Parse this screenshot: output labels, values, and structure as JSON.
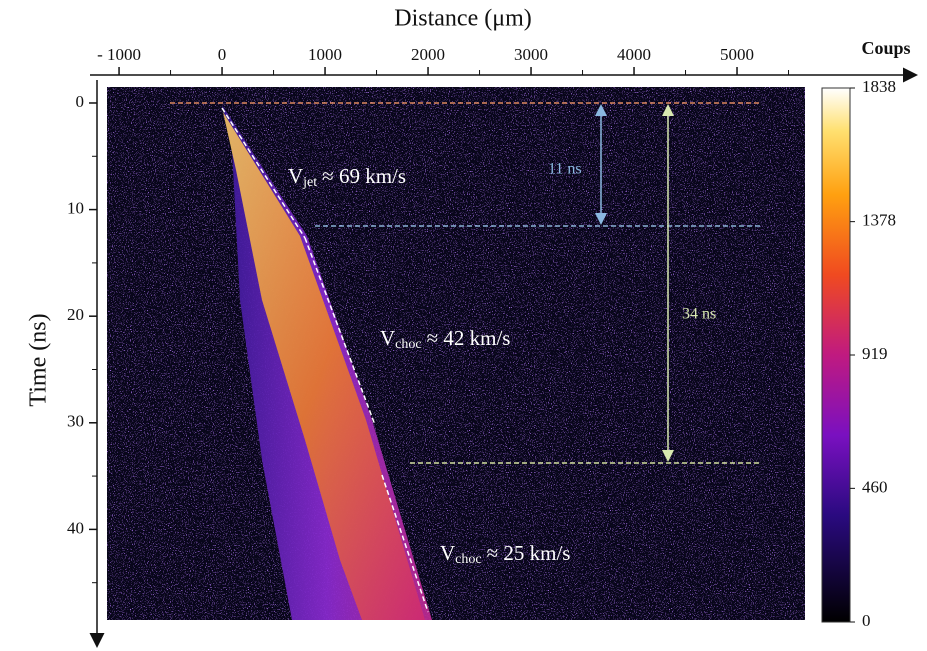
{
  "chart_data": {
    "type": "streak",
    "x_label": "Distance (μm)",
    "y_label": "Time (ns)",
    "xlim": [
      -1117,
      5660
    ],
    "xticks": [
      {
        "value": -1000,
        "label": "- 1000"
      },
      0,
      1000,
      2000,
      3000,
      4000,
      5000
    ],
    "ylim": [
      -1.5,
      48.5
    ],
    "yticks": [
      0,
      10,
      20,
      30,
      40
    ],
    "colorbar": {
      "title": "Coups",
      "clim": [
        0,
        1838
      ],
      "ticks": [
        0,
        460,
        919,
        1378,
        1838
      ]
    },
    "annotations": [
      {
        "symbol": "V",
        "subscript": "jet",
        "text": "≈ 69 km/s"
      },
      {
        "symbol": "V",
        "subscript": "choc",
        "text": "≈ 42 km/s"
      },
      {
        "symbol": "V",
        "subscript": "choc",
        "text": "≈ 25 km/s"
      }
    ],
    "intervals": [
      "11 ns",
      "34 ns"
    ]
  }
}
